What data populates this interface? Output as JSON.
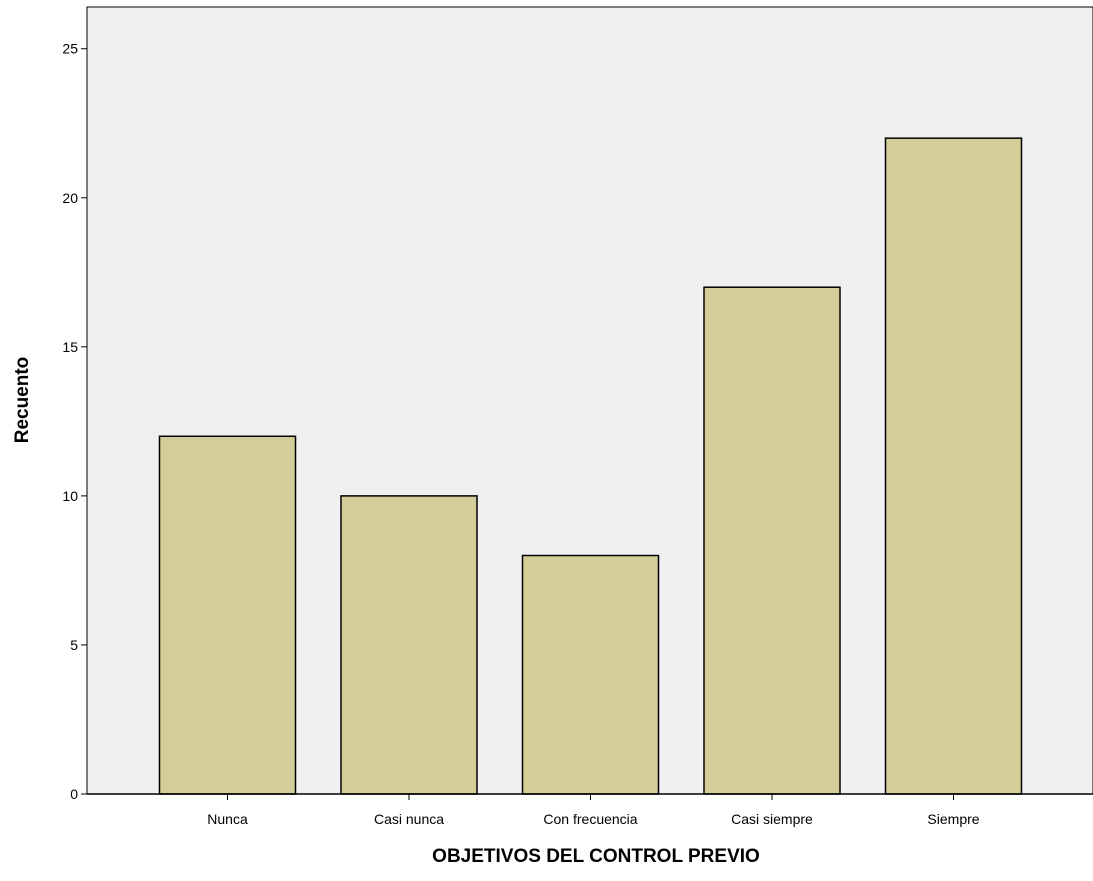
{
  "chart_data": {
    "type": "bar",
    "title": "",
    "xlabel": "OBJETIVOS DEL CONTROL PREVIO",
    "ylabel": "Recuento",
    "categories": [
      "Nunca",
      "Casi nunca",
      "Con frecuencia",
      "Casi siempre",
      "Siempre"
    ],
    "values": [
      12,
      10,
      8,
      17,
      22
    ],
    "ylim": [
      0,
      26.4
    ],
    "yticks": [
      0,
      5,
      10,
      15,
      20,
      25
    ],
    "grid": false,
    "legend": "none"
  },
  "colors": {
    "plot_background": "#f0f0f0",
    "bar_fill": "#d3ce97",
    "bar_stroke": "#000000",
    "axis": "#000000"
  }
}
